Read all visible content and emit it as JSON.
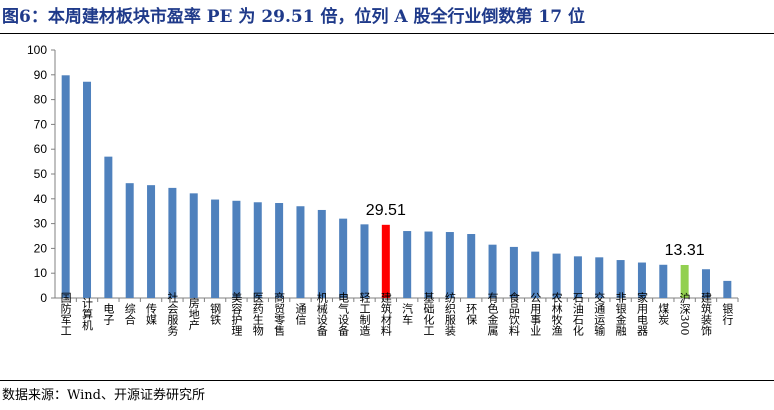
{
  "header": {
    "title": "图6：本周建材板块市盈率 PE 为 29.51 倍，位列 A 股全行业倒数第 17 位"
  },
  "footer": {
    "source": "数据来源：Wind、开源证券研究所"
  },
  "colors": {
    "default_bar": "#4f81bd",
    "highlight_bar": "#ff0000",
    "benchmark_bar": "#92d050",
    "title": "#1f3a8a"
  },
  "chart_data": {
    "type": "bar",
    "title": "",
    "xlabel": "",
    "ylabel": "",
    "ylim": [
      0,
      100
    ],
    "yticks": [
      0,
      10,
      20,
      30,
      40,
      50,
      60,
      70,
      80,
      90,
      100
    ],
    "grid": false,
    "legend": "none",
    "categories": [
      "国防军工",
      "计算机",
      "电子",
      "综合",
      "传媒",
      "社会服务",
      "房地产",
      "钢铁",
      "美容护理",
      "医药生物",
      "商贸零售",
      "通信",
      "机械设备",
      "电气设备",
      "轻工制造",
      "建筑材料",
      "汽车",
      "基础化工",
      "纺织服装",
      "环保",
      "有色金属",
      "食品饮料",
      "公用事业",
      "农林牧渔",
      "石油石化",
      "交通运输",
      "非银金融",
      "家用电器",
      "煤炭",
      "沪深300",
      "建筑装饰",
      "银行"
    ],
    "values": [
      89.8,
      87.2,
      57.0,
      46.3,
      45.5,
      44.4,
      42.2,
      39.7,
      39.2,
      38.6,
      38.3,
      37.0,
      35.5,
      32.0,
      29.7,
      29.51,
      27.0,
      26.8,
      26.6,
      25.8,
      21.5,
      20.6,
      18.7,
      17.9,
      16.8,
      16.4,
      15.3,
      14.3,
      13.4,
      13.31,
      11.6,
      6.9
    ],
    "highlight": [
      {
        "category": "建筑材料",
        "label": "29.51",
        "color_key": "highlight_bar"
      },
      {
        "category": "沪深300",
        "label": "13.31",
        "color_key": "benchmark_bar"
      }
    ]
  }
}
